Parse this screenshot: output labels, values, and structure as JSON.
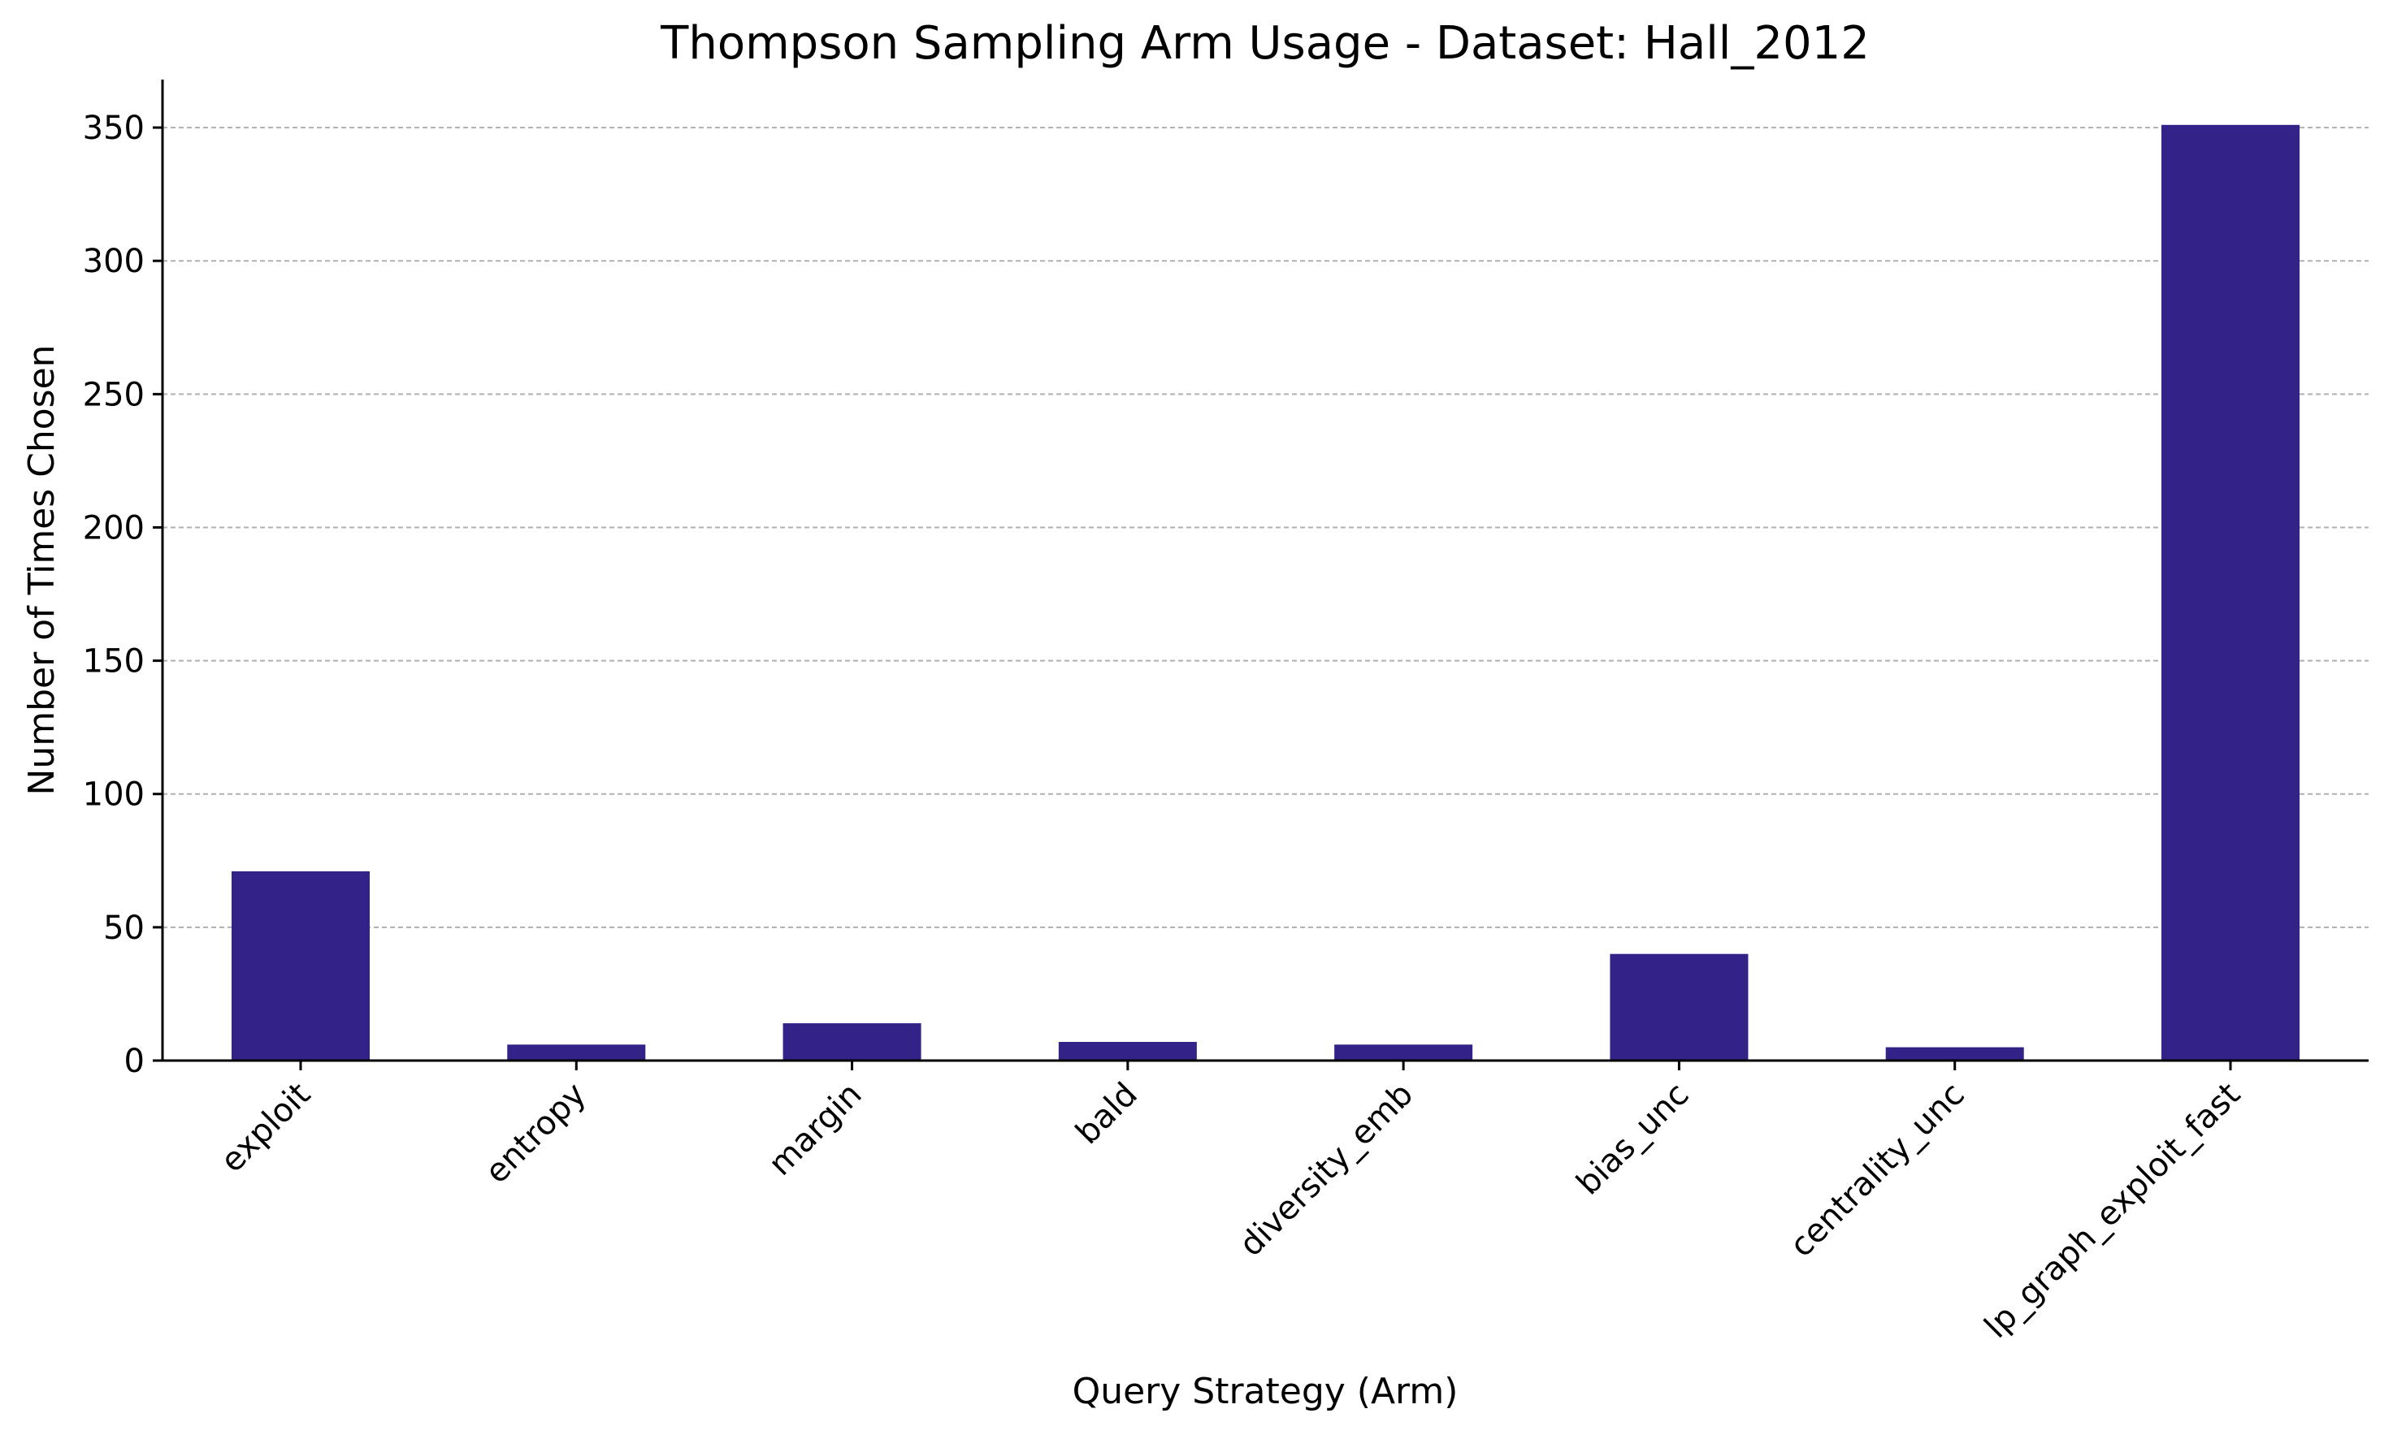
{
  "chart_data": {
    "type": "bar",
    "title": "Thompson Sampling Arm Usage - Dataset: Hall_2012",
    "xlabel": "Query Strategy (Arm)",
    "ylabel": "Number of Times Chosen",
    "categories": [
      "exploit",
      "entropy",
      "margin",
      "bald",
      "diversity_emb",
      "bias_unc",
      "centrality_unc",
      "lp_graph_exploit_fast"
    ],
    "values": [
      71,
      6,
      14,
      7,
      6,
      40,
      5,
      351
    ],
    "ylim": [
      0,
      368
    ],
    "yticks": [
      0,
      50,
      100,
      150,
      200,
      250,
      300,
      350
    ],
    "grid": "horizontal dashed",
    "legend": "none",
    "bar_color": "#332288",
    "tick_rotation_deg": 45
  }
}
